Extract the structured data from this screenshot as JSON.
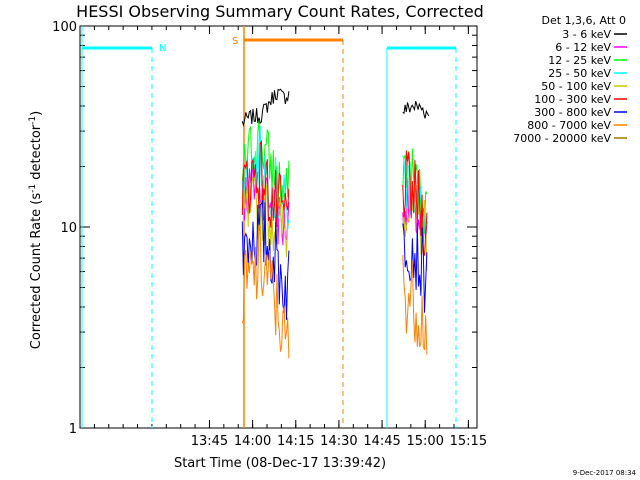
{
  "chart_data": {
    "type": "line",
    "title": "HESSI Observing Summary Count Rates, Corrected",
    "xlabel": "Start Time (08-Dec-17 13:39:42)",
    "ylabel_main": "Corrected Count Rate (s",
    "ylabel_sup": "-1",
    "ylabel_tail": " detector",
    "ylabel_sup2": "-1",
    "ylabel_end": ")",
    "yscale": "log",
    "ylim": [
      1,
      100
    ],
    "xlim_minutes": [
      13.0,
      15.3
    ],
    "x_ticks": [
      "13:45",
      "14:00",
      "14:15",
      "14:30",
      "14:45",
      "15:00",
      "15:15"
    ],
    "y_ticks": [
      "1",
      "10",
      "100"
    ],
    "legend_title": "Det 1,3,6, Att 0",
    "grid": false,
    "legend_placement": "right",
    "series": [
      {
        "name": "3 - 6 keV",
        "color": "#000000",
        "segments": [
          [
            [
              13.94,
              33
            ],
            [
              13.98,
              35
            ],
            [
              14.05,
              36
            ],
            [
              14.1,
              42
            ],
            [
              14.14,
              47
            ],
            [
              14.18,
              44
            ],
            [
              14.21,
              46
            ]
          ],
          [
            [
              14.87,
              38
            ],
            [
              14.93,
              40
            ],
            [
              14.98,
              39
            ],
            [
              15.02,
              36
            ]
          ]
        ]
      },
      {
        "name": "6 - 12 keV",
        "color": "#ff00ff",
        "segments": [
          [
            [
              13.94,
              14
            ],
            [
              14.0,
              16
            ],
            [
              14.03,
              17
            ],
            [
              14.07,
              15
            ],
            [
              14.11,
              13
            ],
            [
              14.15,
              11
            ],
            [
              14.18,
              10
            ],
            [
              14.21,
              11
            ]
          ],
          [
            [
              14.87,
              13
            ],
            [
              14.92,
              12
            ],
            [
              14.96,
              11
            ],
            [
              15.01,
              8
            ]
          ]
        ]
      },
      {
        "name": "12 - 25 keV",
        "color": "#00ff00",
        "segments": [
          [
            [
              13.94,
              18
            ],
            [
              13.99,
              24
            ],
            [
              14.04,
              27
            ],
            [
              14.08,
              23
            ],
            [
              14.12,
              19
            ],
            [
              14.16,
              16
            ],
            [
              14.19,
              14
            ],
            [
              14.21,
              15
            ]
          ],
          [
            [
              14.87,
              21
            ],
            [
              14.92,
              19
            ],
            [
              14.96,
              15
            ],
            [
              15.01,
              12
            ]
          ]
        ]
      },
      {
        "name": "25 - 50 keV",
        "color": "#00ffff",
        "segments": [
          [
            [
              13.94,
              16
            ],
            [
              13.99,
              20
            ],
            [
              14.04,
              22
            ],
            [
              14.08,
              19
            ],
            [
              14.12,
              16
            ],
            [
              14.16,
              14
            ],
            [
              14.19,
              12
            ],
            [
              14.21,
              13
            ]
          ],
          [
            [
              14.87,
              18
            ],
            [
              14.92,
              16
            ],
            [
              14.96,
              13
            ],
            [
              15.01,
              10
            ]
          ]
        ]
      },
      {
        "name": "50 - 100 keV",
        "color": "#c8c800",
        "segments": [
          [
            [
              13.94,
              11
            ],
            [
              14.0,
              12
            ],
            [
              14.04,
              13
            ],
            [
              14.08,
              12
            ],
            [
              14.12,
              11
            ],
            [
              14.16,
              10
            ],
            [
              14.19,
              9.5
            ],
            [
              14.21,
              10
            ]
          ],
          [
            [
              14.87,
              14
            ],
            [
              14.92,
              12
            ],
            [
              14.96,
              11
            ],
            [
              15.01,
              9
            ]
          ]
        ]
      },
      {
        "name": "100 - 300 keV",
        "color": "#ff0000",
        "segments": [
          [
            [
              13.94,
              15
            ],
            [
              13.99,
              18
            ],
            [
              14.04,
              19
            ],
            [
              14.08,
              16
            ],
            [
              14.12,
              13
            ],
            [
              14.16,
              12
            ],
            [
              14.19,
              11
            ],
            [
              14.21,
              12
            ]
          ],
          [
            [
              14.87,
              16
            ],
            [
              14.92,
              15
            ],
            [
              14.96,
              13
            ],
            [
              15.01,
              10
            ]
          ]
        ]
      },
      {
        "name": "300 - 800 keV",
        "color": "#0000ff",
        "segments": [
          [
            [
              13.94,
              8
            ],
            [
              13.99,
              9
            ],
            [
              14.04,
              9.5
            ],
            [
              14.08,
              8.5
            ],
            [
              14.12,
              7.5
            ],
            [
              14.16,
              6
            ],
            [
              14.19,
              5
            ],
            [
              14.21,
              5.5
            ]
          ],
          [
            [
              14.87,
              9
            ],
            [
              14.92,
              8.5
            ],
            [
              14.96,
              7
            ],
            [
              15.01,
              5.5
            ]
          ]
        ]
      },
      {
        "name": "800 - 7000 keV",
        "color": "#ff8000",
        "segments": [
          [
            [
              13.94,
              4.5
            ],
            [
              13.99,
              5.5
            ],
            [
              14.04,
              6.5
            ],
            [
              14.08,
              6
            ],
            [
              14.12,
              4.5
            ],
            [
              14.16,
              3.5
            ],
            [
              14.19,
              2.5
            ],
            [
              14.21,
              2.8
            ]
          ],
          [
            [
              14.87,
              5
            ],
            [
              14.92,
              4.5
            ],
            [
              14.96,
              4
            ],
            [
              15.01,
              3.2
            ]
          ]
        ]
      },
      {
        "name": "7000 - 20000 keV",
        "color": "#a07800",
        "segments": []
      }
    ],
    "annotations": [
      {
        "text": "N",
        "color": "#00ffff"
      },
      {
        "text": "S",
        "color": "#ff8000"
      }
    ],
    "footer_date": "9-Dec-2017 08:34"
  }
}
